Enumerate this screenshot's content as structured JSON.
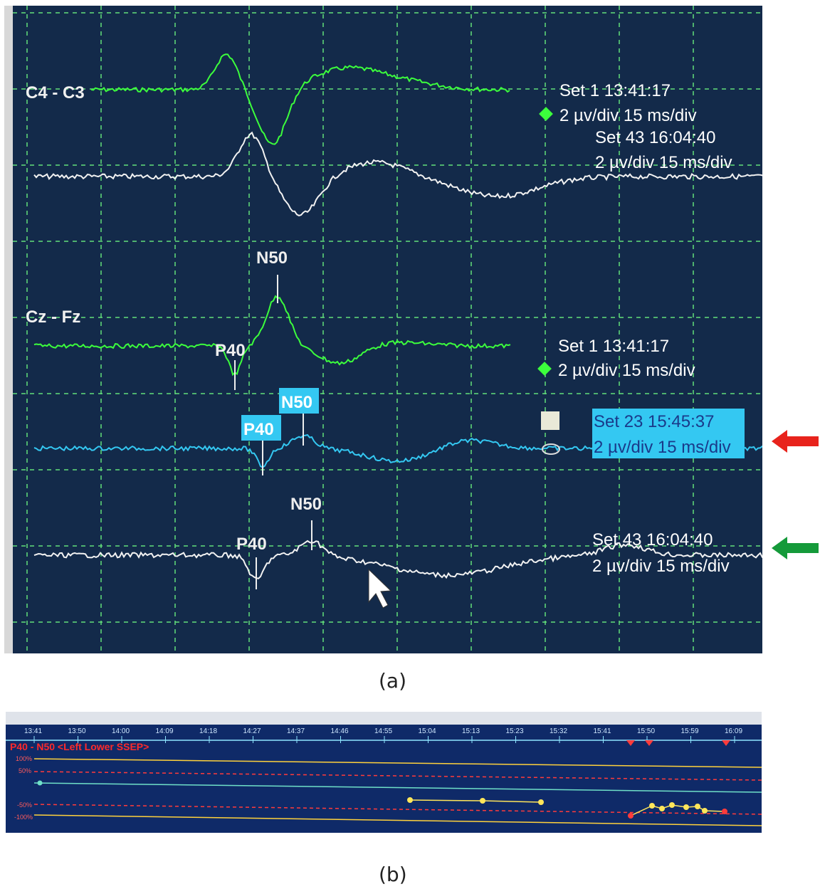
{
  "panel_a": {
    "caption": "(a)",
    "channels": [
      {
        "label": "C4 - C3"
      },
      {
        "label": "Cz - Fz"
      }
    ],
    "trace_labels": [
      {
        "set": "Set 1 13:41:17",
        "scale": "2 µv/div 15 ms/div",
        "color": "#3cff3c",
        "marker": "green-diamond"
      },
      {
        "set": "Set 43 16:04:40",
        "scale": "2 µv/div 15 ms/div",
        "color": "#ffffff"
      },
      {
        "set": "Set 1 13:41:17",
        "scale": "2 µv/div 15 ms/div",
        "color": "#3cff3c",
        "marker": "green-diamond"
      },
      {
        "set": "Set 23 15:45:37",
        "scale": "2 µv/div 15 ms/div",
        "color": "#34c8f2",
        "highlighted": true
      },
      {
        "set": "Set 43 16:04:40",
        "scale": "2 µv/div 15 ms/div",
        "color": "#ffffff"
      }
    ],
    "peak_labels": {
      "green_n50": "N50",
      "green_p40": "P40",
      "blue_n50": "N50",
      "blue_p40": "P40",
      "white_n50": "N50",
      "white_p40": "P40"
    },
    "arrows": [
      {
        "color": "#e8231c",
        "points_to": "Set 23 15:45:37"
      },
      {
        "color": "#159a3a",
        "points_to": "Set 43 16:04:40"
      }
    ]
  },
  "panel_b": {
    "caption": "(b)",
    "title": "P40 - N50 <Left Lower SSEP>",
    "time_ticks": [
      "13:41",
      "13:50",
      "14:00",
      "14:09",
      "14:18",
      "14:27",
      "14:37",
      "14:46",
      "14:55",
      "15:04",
      "15:13",
      "15:23",
      "15:32",
      "15:41",
      "15:50",
      "15:59",
      "16:09"
    ],
    "y_labels": [
      "100%",
      "50%",
      "-50%",
      "-100%"
    ],
    "colors": {
      "background": "#0f2a68",
      "title": "#ff2a2a",
      "limit_line": "#ffd23c",
      "alarm_line": "#ff3b3b",
      "baseline": "#6fe0c8"
    }
  }
}
